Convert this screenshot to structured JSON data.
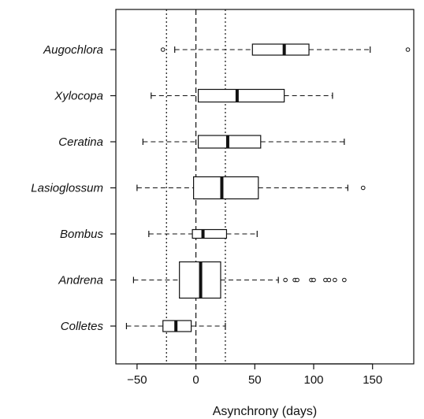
{
  "chart_data": {
    "type": "boxplot",
    "orientation": "horizontal",
    "title": "",
    "xlabel": "Asynchrony (days)",
    "ylabel": "",
    "xlim": [
      -68,
      185
    ],
    "xticks": [
      -50,
      0,
      50,
      100,
      150
    ],
    "reference_lines": [
      {
        "x": -25,
        "style": "dotted"
      },
      {
        "x": 0,
        "style": "dashed"
      },
      {
        "x": 25,
        "style": "dotted"
      }
    ],
    "categories": [
      "Augochlora",
      "Xylocopa",
      "Ceratina",
      "Lasioglossum",
      "Bombus",
      "Andrena",
      "Colletes"
    ],
    "boxes": [
      {
        "name": "Augochlora",
        "whisker_low": -18,
        "q1": 48,
        "median": 75,
        "q3": 96,
        "whisker_high": 148,
        "outliers": [
          -28,
          180
        ]
      },
      {
        "name": "Xylocopa",
        "whisker_low": -38,
        "q1": 2,
        "median": 35,
        "q3": 75,
        "whisker_high": 116,
        "outliers": []
      },
      {
        "name": "Ceratina",
        "whisker_low": -45,
        "q1": 2,
        "median": 27,
        "q3": 55,
        "whisker_high": 126,
        "outliers": []
      },
      {
        "name": "Lasioglossum",
        "whisker_low": -50,
        "q1": -2,
        "median": 22,
        "q3": 53,
        "whisker_high": 129,
        "outliers": [
          142
        ]
      },
      {
        "name": "Bombus",
        "whisker_low": -40,
        "q1": -3,
        "median": 6,
        "q3": 26,
        "whisker_high": 52,
        "outliers": []
      },
      {
        "name": "Andrena",
        "whisker_low": -53,
        "q1": -14,
        "median": 4,
        "q3": 21,
        "whisker_high": 70,
        "outliers": [
          76,
          84,
          86,
          98,
          100,
          110,
          113,
          118,
          126
        ]
      },
      {
        "name": "Colletes",
        "whisker_low": -59,
        "q1": -28,
        "median": -17,
        "q3": -4,
        "whisker_high": 25,
        "outliers": []
      }
    ],
    "grid": false,
    "legend": "none"
  }
}
